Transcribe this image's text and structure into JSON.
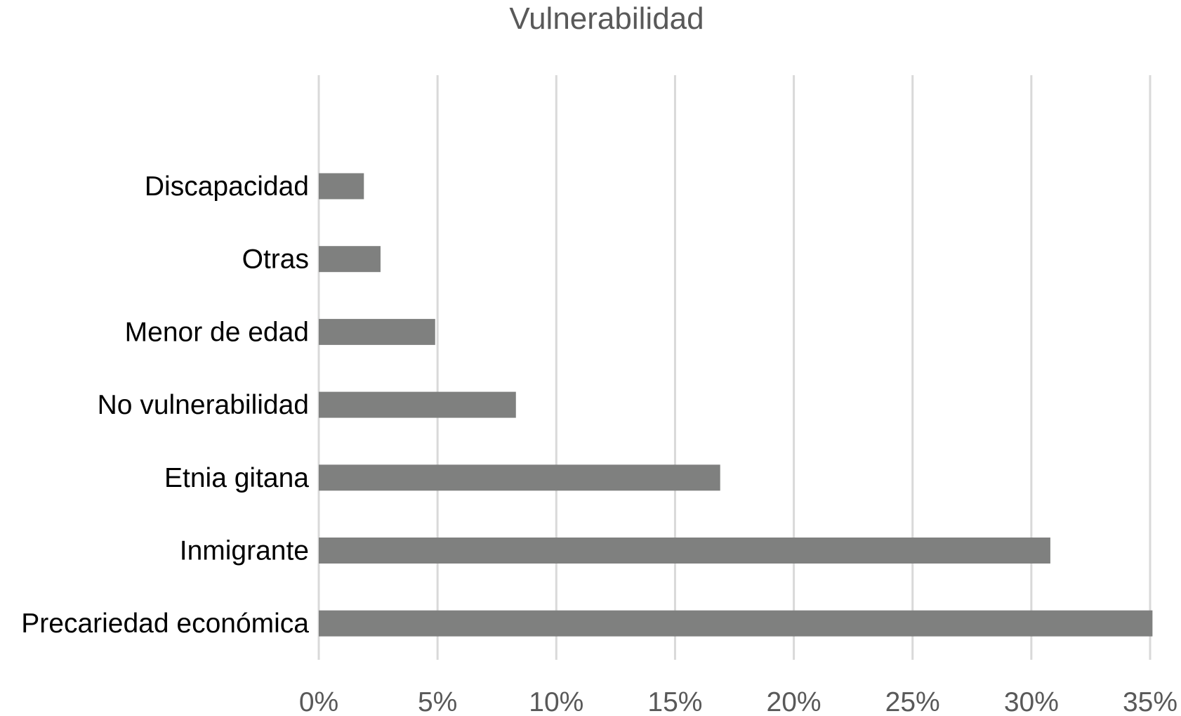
{
  "chart_data": {
    "type": "bar",
    "orientation": "horizontal",
    "title": "Vulnerabilidad",
    "categories": [
      "Discapacidad",
      "Otras",
      "Menor de edad",
      "No vulnerabilidad",
      "Etnia gitana",
      "Inmigrante",
      "Precariedad económica"
    ],
    "values": [
      1.9,
      2.6,
      4.9,
      8.3,
      16.9,
      30.8,
      35.1
    ],
    "unit": "%",
    "xlim": [
      0,
      35
    ],
    "xticks": [
      "0%",
      "5%",
      "10%",
      "15%",
      "20%",
      "25%",
      "30%",
      "35%"
    ],
    "grid": "vertical",
    "bar_color": "#7f807f",
    "grid_color": "#d9d9d9"
  }
}
